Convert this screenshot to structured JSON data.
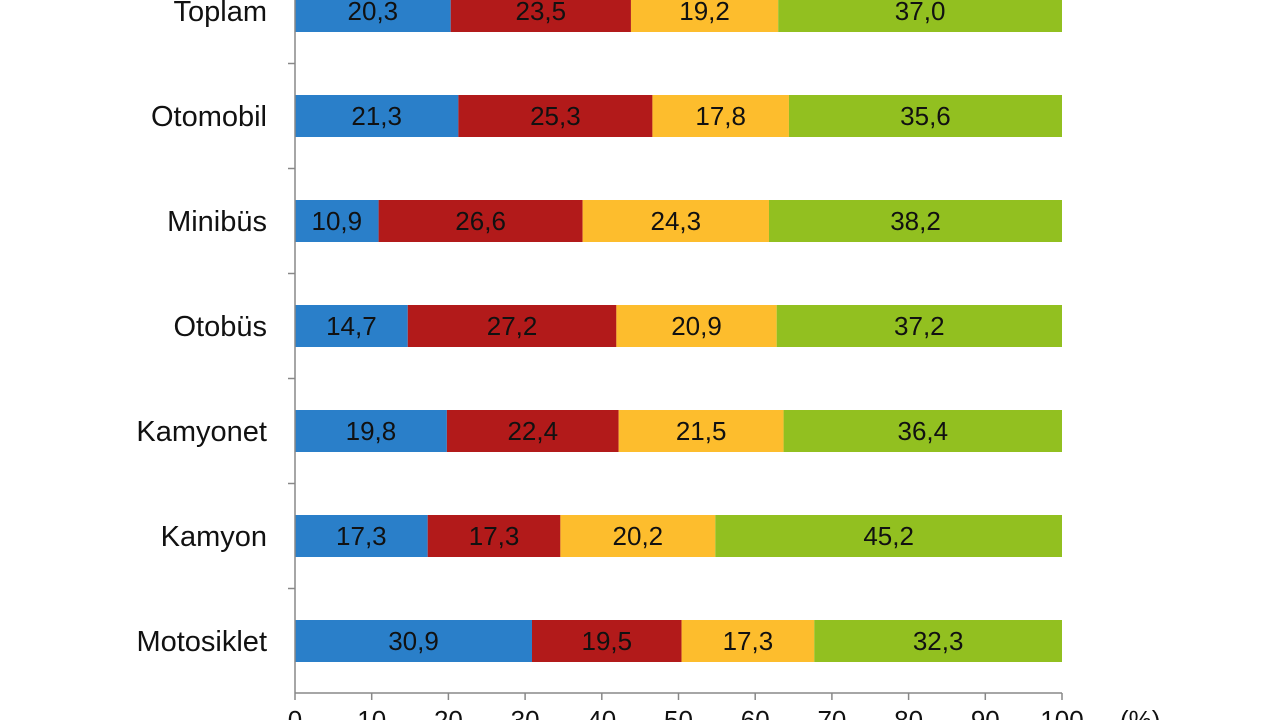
{
  "chart_data": {
    "type": "bar",
    "orientation": "horizontal",
    "stacked": true,
    "categories": [
      "Toplam",
      "Otomobil",
      "Minibüs",
      "Otobüs",
      "Kamyonet",
      "Kamyon",
      "Motosiklet"
    ],
    "series": [
      {
        "color": "#2a7fc9",
        "values": [
          20.3,
          21.3,
          10.9,
          14.7,
          19.8,
          17.3,
          30.9
        ]
      },
      {
        "color": "#b21a1a",
        "values": [
          23.5,
          25.3,
          26.6,
          27.2,
          22.4,
          17.3,
          19.5
        ]
      },
      {
        "color": "#fdbd2d",
        "values": [
          19.2,
          17.8,
          24.3,
          20.9,
          21.5,
          20.2,
          17.3
        ]
      },
      {
        "color": "#92c020",
        "values": [
          37.0,
          35.6,
          38.2,
          37.2,
          36.4,
          45.2,
          32.3
        ]
      }
    ],
    "value_labels": [
      [
        "20,3",
        "23,5",
        "19,2",
        "37,0"
      ],
      [
        "21,3",
        "25,3",
        "17,8",
        "35,6"
      ],
      [
        "10,9",
        "26,6",
        "24,3",
        "38,2"
      ],
      [
        "14,7",
        "27,2",
        "20,9",
        "37,2"
      ],
      [
        "19,8",
        "22,4",
        "21,5",
        "36,4"
      ],
      [
        "17,3",
        "17,3",
        "20,2",
        "45,2"
      ],
      [
        "30,9",
        "19,5",
        "17,3",
        "32,3"
      ]
    ],
    "x_ticks": [
      "0",
      "10",
      "20",
      "30",
      "40",
      "50",
      "60",
      "70",
      "80",
      "90",
      "100"
    ],
    "x_unit": "(%)",
    "xlim": [
      0,
      100
    ],
    "grid": false,
    "legend": "none"
  }
}
